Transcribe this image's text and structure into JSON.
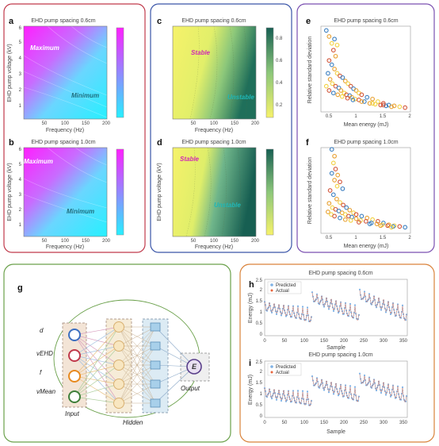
{
  "colors": {
    "box_a": "#c0394b",
    "box_c": "#3a55a8",
    "box_e": "#7a4fb0",
    "box_g": "#6aa04a",
    "box_h": "#d9823a",
    "predicted": "#7fb2e5",
    "actual": "#e8643c",
    "scatter": [
      "#3c7fc0",
      "#e8a030",
      "#f2d040",
      "#d2563a"
    ],
    "stable_text": "#d12bb4",
    "unstable_text": "#1fb7b7",
    "max_text": "#ffffff",
    "min_text": "#1f6f7f"
  },
  "panels": {
    "a": {
      "letter": "a",
      "title": "EHD pump spacing 0.6cm",
      "region_hi": "Maximum",
      "region_lo": "Minimum"
    },
    "b": {
      "letter": "b",
      "title": "EHD pump spacing 1.0cm",
      "region_hi": "Maximum",
      "region_lo": "Minimum"
    },
    "c": {
      "letter": "c",
      "title": "EHD pump spacing 0.6cm",
      "region_hi": "Stable",
      "region_lo": "Unstable"
    },
    "d": {
      "letter": "d",
      "title": "EHD pump spacing 1.0cm",
      "region_hi": "Stable",
      "region_lo": "Unstable"
    },
    "e": {
      "letter": "e",
      "title": "EHD pump spacing 0.6cm"
    },
    "f": {
      "letter": "f",
      "title": "EHD pump spacing 1.0cm"
    },
    "g": {
      "letter": "g"
    },
    "h": {
      "letter": "h",
      "title": "EHD pump spacing 0.6cm"
    },
    "i": {
      "letter": "i",
      "title": "EHD pump spacing 1.0cm"
    }
  },
  "colorbar_a": {
    "ticks": [
      "",
      "",
      "",
      ""
    ]
  },
  "colorbar_c": {
    "ticks": [
      "0.8",
      "0.6",
      "0.4",
      "0.2"
    ]
  },
  "heatmap_axes": {
    "xlabel": "Frequency (Hz)",
    "ylabel": "EHD pump voltage (kV)",
    "xticks": [
      "50",
      "100",
      "150",
      "200"
    ],
    "xlim": [
      0,
      200
    ],
    "yticks": [
      "1",
      "2",
      "3",
      "4",
      "5",
      "6"
    ],
    "ylim": [
      0.6,
      6
    ]
  },
  "scatter_axes": {
    "xlabel": "Mean energy (mJ)",
    "ylabel": "Relative standard deviation",
    "xticks": [
      "0.5",
      "1",
      "1.5",
      "2"
    ],
    "xlim": [
      0.35,
      2.0
    ]
  },
  "network": {
    "inputs": [
      "d",
      "vEHD",
      "f",
      "vMean"
    ],
    "input_label": "Input",
    "hidden_label": "Hidden",
    "output_label": "Output",
    "output_node": "E"
  },
  "energy_axes": {
    "xlabel": "Sample",
    "ylabel": "Energy (mJ)",
    "xticks": [
      "0",
      "50",
      "100",
      "150",
      "200",
      "250",
      "300",
      "350"
    ],
    "yticks": [
      "0",
      "0.5",
      "1",
      "1.5",
      "2",
      "2.5"
    ],
    "legend": [
      "Predicted",
      "Actual"
    ]
  },
  "chart_data": [
    {
      "type": "heatmap",
      "panel": "a",
      "title": "EHD pump spacing 0.6cm",
      "xlabel": "Frequency (Hz)",
      "ylabel": "EHD pump voltage (kV)",
      "xlim": [
        0,
        200
      ],
      "ylim": [
        0.6,
        6
      ],
      "annotations": [
        "Maximum",
        "Minimum"
      ],
      "colormap": "cyan-magenta"
    },
    {
      "type": "heatmap",
      "panel": "b",
      "title": "EHD pump spacing 1.0cm",
      "xlabel": "Frequency (Hz)",
      "ylabel": "EHD pump voltage (kV)",
      "xlim": [
        0,
        200
      ],
      "ylim": [
        0.6,
        6
      ],
      "annotations": [
        "Maximum",
        "Minimum"
      ],
      "colormap": "cyan-magenta"
    },
    {
      "type": "heatmap",
      "panel": "c",
      "title": "EHD pump spacing 0.6cm",
      "xlabel": "Frequency (Hz)",
      "xlim": [
        0,
        200
      ],
      "ylim": [
        0.6,
        6
      ],
      "annotations": [
        "Stable",
        "Unstable"
      ],
      "colormap": "yellow-green",
      "colorbar_ticks": [
        0.2,
        0.4,
        0.6,
        0.8
      ]
    },
    {
      "type": "heatmap",
      "panel": "d",
      "title": "EHD pump spacing 1.0cm",
      "xlabel": "Frequency (Hz)",
      "ylabel": "EHD pump voltage (kV)",
      "xlim": [
        0,
        200
      ],
      "ylim": [
        0.6,
        6
      ],
      "annotations": [
        "Stable",
        "Unstable"
      ],
      "colormap": "yellow-green"
    },
    {
      "type": "scatter",
      "panel": "e",
      "title": "EHD pump spacing 0.6cm",
      "xlabel": "Mean energy (mJ)",
      "ylabel": "Relative standard deviation",
      "xlim": [
        0.35,
        2.0
      ],
      "ylim": [
        0,
        1
      ],
      "points": [
        [
          0.45,
          0.95
        ],
        [
          0.5,
          0.88
        ],
        [
          0.55,
          0.8
        ],
        [
          0.58,
          0.72
        ],
        [
          0.6,
          0.85
        ],
        [
          0.62,
          0.65
        ],
        [
          0.65,
          0.78
        ],
        [
          0.5,
          0.6
        ],
        [
          0.55,
          0.55
        ],
        [
          0.6,
          0.5
        ],
        [
          0.65,
          0.45
        ],
        [
          0.7,
          0.42
        ],
        [
          0.75,
          0.4
        ],
        [
          0.8,
          0.36
        ],
        [
          0.85,
          0.33
        ],
        [
          0.9,
          0.3
        ],
        [
          0.95,
          0.27
        ],
        [
          1.0,
          0.25
        ],
        [
          1.05,
          0.22
        ],
        [
          1.1,
          0.2
        ],
        [
          1.2,
          0.17
        ],
        [
          1.3,
          0.15
        ],
        [
          1.4,
          0.12
        ],
        [
          1.5,
          0.1
        ],
        [
          1.6,
          0.08
        ],
        [
          1.7,
          0.07
        ],
        [
          1.8,
          0.06
        ],
        [
          1.9,
          0.05
        ],
        [
          0.48,
          0.45
        ],
        [
          0.52,
          0.38
        ],
        [
          0.56,
          0.33
        ],
        [
          0.62,
          0.3
        ],
        [
          0.68,
          0.28
        ],
        [
          0.72,
          0.25
        ],
        [
          0.78,
          0.22
        ],
        [
          0.82,
          0.2
        ],
        [
          0.88,
          0.19
        ],
        [
          0.92,
          0.17
        ],
        [
          0.98,
          0.15
        ],
        [
          1.05,
          0.14
        ],
        [
          1.15,
          0.12
        ],
        [
          1.25,
          0.1
        ],
        [
          1.35,
          0.09
        ],
        [
          1.45,
          0.08
        ],
        [
          1.55,
          0.07
        ],
        [
          1.65,
          0.06
        ],
        [
          0.45,
          0.3
        ],
        [
          0.5,
          0.25
        ],
        [
          0.58,
          0.22
        ],
        [
          0.66,
          0.2
        ],
        [
          0.74,
          0.18
        ],
        [
          0.84,
          0.16
        ],
        [
          0.94,
          0.14
        ],
        [
          1.1,
          0.12
        ],
        [
          1.3,
          0.1
        ],
        [
          1.5,
          0.08
        ]
      ]
    },
    {
      "type": "scatter",
      "panel": "f",
      "title": "EHD pump spacing 1.0cm",
      "xlabel": "Mean energy (mJ)",
      "ylabel": "Relative standard deviation",
      "xlim": [
        0.35,
        2.0
      ],
      "ylim": [
        0,
        1
      ],
      "points": [
        [
          0.55,
          0.98
        ],
        [
          0.6,
          0.9
        ],
        [
          0.58,
          0.82
        ],
        [
          0.62,
          0.75
        ],
        [
          0.55,
          0.7
        ],
        [
          0.6,
          0.62
        ],
        [
          0.65,
          0.55
        ],
        [
          0.52,
          0.5
        ],
        [
          0.58,
          0.45
        ],
        [
          0.64,
          0.4
        ],
        [
          0.7,
          0.36
        ],
        [
          0.76,
          0.33
        ],
        [
          0.82,
          0.3
        ],
        [
          0.88,
          0.27
        ],
        [
          0.95,
          0.24
        ],
        [
          1.0,
          0.22
        ],
        [
          1.1,
          0.2
        ],
        [
          1.2,
          0.18
        ],
        [
          1.3,
          0.16
        ],
        [
          1.4,
          0.14
        ],
        [
          1.5,
          0.12
        ],
        [
          1.6,
          0.1
        ],
        [
          1.7,
          0.09
        ],
        [
          1.8,
          0.08
        ],
        [
          1.9,
          0.07
        ],
        [
          0.5,
          0.35
        ],
        [
          0.56,
          0.3
        ],
        [
          0.62,
          0.28
        ],
        [
          0.68,
          0.26
        ],
        [
          0.74,
          0.24
        ],
        [
          0.8,
          0.22
        ],
        [
          0.86,
          0.2
        ],
        [
          0.92,
          0.19
        ],
        [
          1.0,
          0.17
        ],
        [
          1.08,
          0.15
        ],
        [
          1.18,
          0.14
        ],
        [
          1.28,
          0.12
        ],
        [
          1.38,
          0.11
        ],
        [
          1.48,
          0.1
        ],
        [
          1.58,
          0.09
        ],
        [
          1.68,
          0.08
        ],
        [
          0.48,
          0.25
        ],
        [
          0.54,
          0.22
        ],
        [
          0.6,
          0.2
        ],
        [
          0.7,
          0.18
        ],
        [
          0.8,
          0.16
        ],
        [
          0.9,
          0.15
        ],
        [
          1.05,
          0.13
        ],
        [
          1.25,
          0.11
        ],
        [
          1.45,
          0.09
        ],
        [
          1.65,
          0.07
        ],
        [
          0.7,
          0.6
        ],
        [
          0.75,
          0.52
        ],
        [
          0.66,
          0.68
        ]
      ]
    },
    {
      "type": "line",
      "panel": "h",
      "title": "EHD pump spacing 0.6cm",
      "xlabel": "Sample",
      "ylabel": "Energy (mJ)",
      "xlim": [
        0,
        360
      ],
      "ylim": [
        0,
        2.5
      ],
      "series": [
        {
          "name": "Predicted"
        },
        {
          "name": "Actual"
        }
      ],
      "segments": [
        [
          0,
          120,
          1.5,
          0.9
        ],
        [
          120,
          240,
          1.9,
          0.7
        ],
        [
          240,
          360,
          2.0,
          0.6
        ]
      ]
    },
    {
      "type": "line",
      "panel": "i",
      "title": "EHD pump spacing 1.0cm",
      "xlabel": "Sample",
      "ylabel": "Energy (mJ)",
      "xlim": [
        0,
        360
      ],
      "ylim": [
        0,
        2.5
      ],
      "series": [
        {
          "name": "Predicted"
        },
        {
          "name": "Actual"
        }
      ],
      "segments": [
        [
          0,
          120,
          1.3,
          0.9
        ],
        [
          120,
          240,
          1.8,
          0.8
        ],
        [
          240,
          360,
          1.9,
          0.7
        ]
      ]
    }
  ]
}
